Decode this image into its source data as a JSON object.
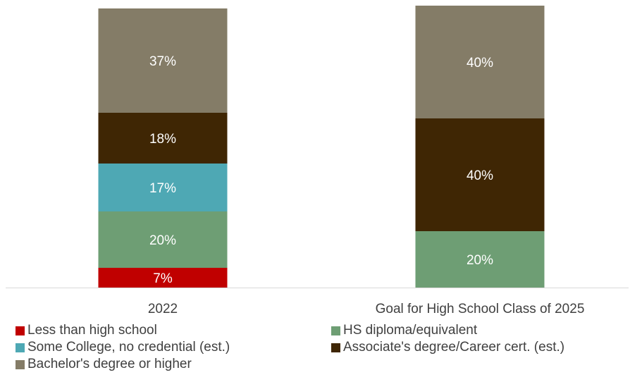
{
  "chart_data": {
    "type": "bar",
    "stacked": true,
    "categories": [
      "2022",
      "Goal for High School Class of 2025"
    ],
    "series": [
      {
        "name": "Less than high school",
        "color": "#c00000",
        "values": [
          7,
          0
        ]
      },
      {
        "name": "HS diploma/equivalent",
        "color": "#6e9e74",
        "values": [
          20,
          20
        ]
      },
      {
        "name": "Some College, no credential (est.)",
        "color": "#4ea8b4",
        "values": [
          17,
          0
        ]
      },
      {
        "name": "Associate's degree/Career cert. (est.)",
        "color": "#3f2604",
        "values": [
          18,
          40
        ]
      },
      {
        "name": "Bachelor's degree or higher",
        "color": "#847c67",
        "values": [
          37,
          40
        ]
      }
    ],
    "data_labels": [
      [
        "7%",
        "20%",
        "17%",
        "18%",
        "37%"
      ],
      [
        "",
        "20%",
        "",
        "40%",
        "40%"
      ]
    ],
    "ylim": [
      0,
      100
    ],
    "grid": false,
    "legend_position": "bottom",
    "axis_color": "#d9d9d9",
    "label_color": "#ffffff",
    "tick_color": "#404040"
  }
}
